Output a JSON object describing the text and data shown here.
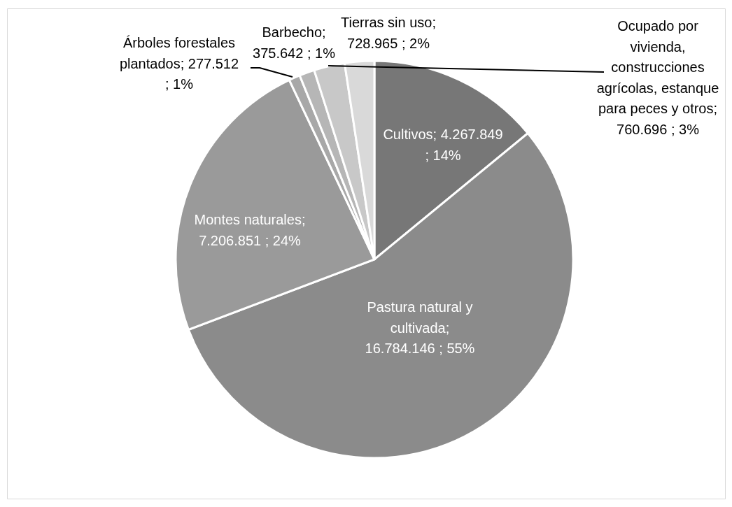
{
  "chart_data": {
    "type": "pie",
    "categories": [
      "Cultivos",
      "Pastura natural y cultivada",
      "Montes naturales",
      "Árboles forestales plantados",
      "Barbecho",
      "Ocupado por vivienda, construcciones agrícolas, estanque para peces y otros",
      "Tierras sin uso"
    ],
    "values": [
      4267849,
      16784146,
      7206851,
      277512,
      375642,
      760696,
      728965
    ],
    "colors": [
      "#777777",
      "#8b8b8b",
      "#9a9a9a",
      "#a8a8a8",
      "#b6b6b6",
      "#c8c8c8",
      "#d9d9d9"
    ],
    "value_labels": [
      "; 4.267.849 ; 14%",
      "; 16.784.146 ; 55%",
      "; 7.206.851 ; 24%",
      "; 277.512 ; 1%",
      "; 375.642 ; 1%",
      "; 760.696 ; 3%",
      "; 728.965 ; 2%"
    ]
  }
}
